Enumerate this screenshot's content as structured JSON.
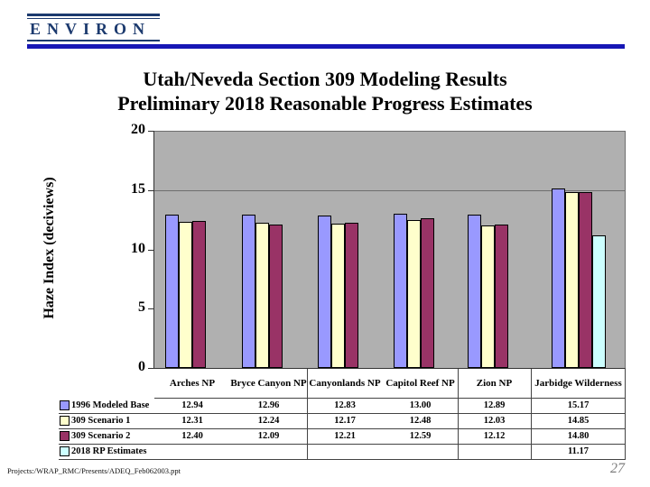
{
  "logo": {
    "text": "ENVIRON"
  },
  "title": {
    "line1": "Utah/Neveda Section 309 Modeling Results",
    "line2": "Preliminary 2018 Reasonable Progress Estimates"
  },
  "chart_data": {
    "type": "bar",
    "title": "",
    "xlabel": "",
    "ylabel": "Haze Index (deciviews)",
    "ylim": [
      0,
      20
    ],
    "yticks": [
      0,
      5,
      10,
      15,
      20
    ],
    "gridlines_at": [
      15
    ],
    "plot_bg_color": "#b0b0b0",
    "legend_position": "data-table-left",
    "categories": [
      "Arches NP",
      "Bryce Canyon NP",
      "Canyonlands NP",
      "Capitol Reef NP",
      "Zion NP",
      "Jarbidge Wilderness"
    ],
    "series": [
      {
        "name": "1996 Modeled Base",
        "color": "#9999ff",
        "values": [
          12.94,
          12.96,
          12.83,
          13.0,
          12.89,
          15.17
        ]
      },
      {
        "name": "309 Scenario 1",
        "color": "#ffffcc",
        "values": [
          12.31,
          12.24,
          12.17,
          12.48,
          12.03,
          14.85
        ]
      },
      {
        "name": "309 Scenario 2",
        "color": "#993366",
        "values": [
          12.4,
          12.09,
          12.21,
          12.59,
          12.12,
          14.8
        ]
      },
      {
        "name": "2018 RP Estimates",
        "color": "#ccffff",
        "values": [
          null,
          null,
          null,
          null,
          null,
          11.17
        ]
      }
    ]
  },
  "footer": {
    "path": "Projects:/WRAP_RMC/Presents/ADEQ_Feb062003.ppt",
    "page_number": "27"
  },
  "colors": {
    "logo_navy": "#1c3a6e",
    "rule_blue": "#1717b5",
    "plot_gray": "#b0b0b0"
  }
}
